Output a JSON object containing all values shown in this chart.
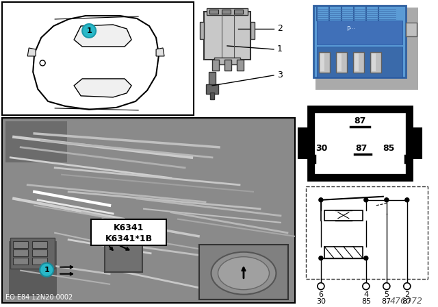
{
  "bg_color": "#ffffff",
  "cyan_color": "#29b8c8",
  "relay_blue": "#5b9bd5",
  "diagram_label": "476072",
  "eo_label": "EO E84 12N20 0002",
  "part_numbers": [
    "K6341",
    "K6341*1B"
  ],
  "pin_top": "87",
  "pin_mid_left": "30",
  "pin_mid_mid": "87",
  "pin_mid_right": "85",
  "schematic_pins_top": [
    "6",
    "4",
    "5",
    "2"
  ],
  "schematic_pins_bot": [
    "30",
    "85",
    "87",
    "87"
  ],
  "item1": "1",
  "item2": "2",
  "item3": "3",
  "photo_bg": "#8a8a8a",
  "photo_mid": "#707070",
  "photo_dark": "#555555",
  "photo_light": "#b0b0b0",
  "photo_bright": "#d0d0d0"
}
